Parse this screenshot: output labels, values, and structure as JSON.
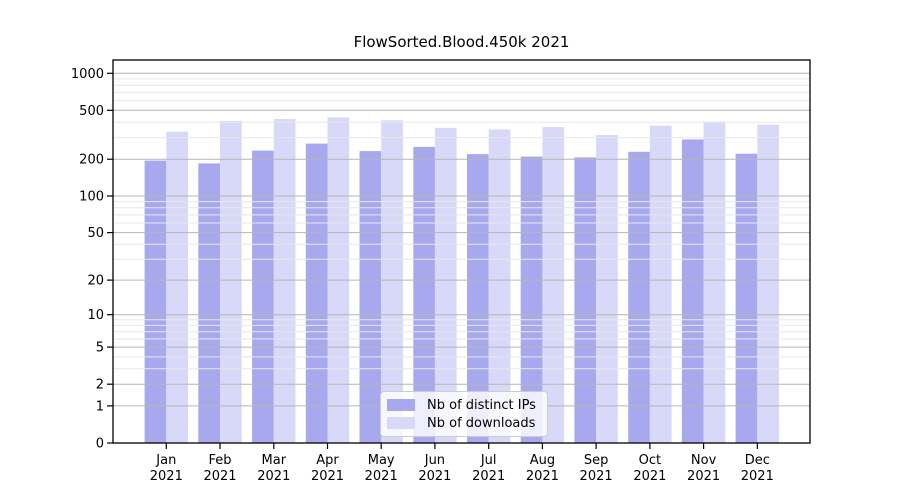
{
  "chart_data": {
    "type": "bar",
    "title": "FlowSorted.Blood.450k 2021",
    "categories": [
      "Jan 2021",
      "Feb 2021",
      "Mar 2021",
      "Apr 2021",
      "May 2021",
      "Jun 2021",
      "Jul 2021",
      "Aug 2021",
      "Sep 2021",
      "Oct 2021",
      "Nov 2021",
      "Dec 2021"
    ],
    "series": [
      {
        "name": "Nb of distinct IPs",
        "color": "#a8a8ef",
        "values": [
          195,
          185,
          235,
          268,
          233,
          252,
          220,
          210,
          207,
          230,
          290,
          222
        ]
      },
      {
        "name": "Nb of downloads",
        "color": "#d8d8f8",
        "values": [
          335,
          410,
          425,
          438,
          415,
          360,
          350,
          365,
          315,
          375,
          405,
          382
        ]
      }
    ],
    "y_axis": {
      "scale": "log1p",
      "range": [
        0,
        1000
      ],
      "ticks": [
        0,
        1,
        2,
        5,
        10,
        20,
        50,
        100,
        200,
        500,
        1000
      ],
      "minor_ticks": [
        3,
        4,
        6,
        7,
        8,
        9,
        30,
        40,
        60,
        70,
        80,
        90,
        300,
        400,
        600,
        700,
        800,
        900
      ]
    },
    "xlabel": "",
    "ylabel": "",
    "grid": true,
    "legend_position": "bottom-center",
    "colors": {
      "grid_major": "#b6b6b6",
      "grid_minor": "#e8e8e8",
      "axis": "#000000",
      "background": "#ffffff"
    }
  }
}
